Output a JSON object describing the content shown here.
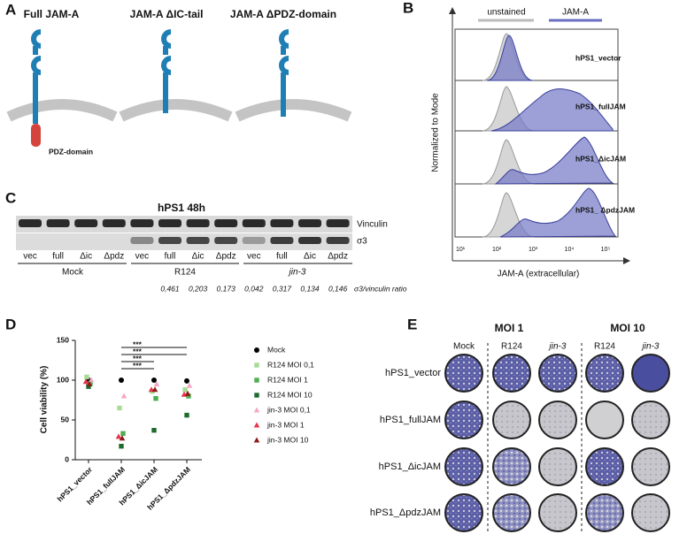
{
  "panel_a": {
    "letter": "A",
    "labels": [
      "Full JAM-A",
      "JAM-A ΔIC-tail",
      "JAM-A ΔPDZ-domain"
    ],
    "pdz_label": "PDZ-domain"
  },
  "panel_b": {
    "letter": "B",
    "legend": [
      "unstained",
      "JAM-A"
    ],
    "y_label": "Normalized to Mode",
    "x_label": "JAM-A (extracellular)",
    "rows": [
      "hPS1_vector",
      "hPS1_fullJAM",
      "hPS1_ΔicJAM",
      "hPS1_ ΔpdzJAM"
    ],
    "x_ticks": [
      "10¹",
      "10²",
      "10³",
      "10⁴",
      "10⁵"
    ]
  },
  "panel_c": {
    "letter": "C",
    "title": "hPS1 48h",
    "blots": [
      "Vinculin",
      "σ3"
    ],
    "lanes": [
      "vec",
      "full",
      "Δic",
      "Δpdz",
      "vec",
      "full",
      "Δic",
      "Δpdz",
      "vec",
      "full",
      "Δic",
      "Δpdz"
    ],
    "groups": [
      "Mock",
      "R124",
      "jin-3"
    ],
    "ratios": [
      "0,461",
      "0,203",
      "0,173",
      "0,042",
      "0,317",
      "0,134",
      "0,146"
    ],
    "ratio_label": "σ3/vinculin ratio"
  },
  "panel_d": {
    "letter": "D"
  },
  "chart_data": {
    "type": "scatter",
    "y_label": "Cell viability (%)",
    "categories": [
      "hPS1_vector",
      "hPS1_fullJAM",
      "hPS1_ΔicJAM",
      "hPS1_ΔpdzJAM"
    ],
    "ylim": [
      0,
      150
    ],
    "yticks": [
      0,
      50,
      100,
      150
    ],
    "annotations": [
      "***",
      "***",
      "***",
      "***"
    ],
    "series": [
      {
        "name": "Mock",
        "color": "#000000",
        "marker": "circle",
        "values": [
          100,
          100,
          100,
          99
        ]
      },
      {
        "name": "R124 MOI 0,1",
        "color": "#a6dc94",
        "marker": "square",
        "values": [
          104,
          65,
          86,
          88
        ]
      },
      {
        "name": "R124 MOI 1",
        "color": "#4caf50",
        "marker": "square",
        "values": [
          96,
          33,
          77,
          80
        ]
      },
      {
        "name": "R124 MOI 10",
        "color": "#1e6b2e",
        "marker": "square",
        "values": [
          92,
          17,
          37,
          56
        ]
      },
      {
        "name": "jin-3 MOI 0,1",
        "color": "#f4a7c7",
        "marker": "triangle",
        "values": [
          100,
          80,
          95,
          93
        ]
      },
      {
        "name": "jin-3 MOI 1",
        "color": "#e8344a",
        "marker": "triangle",
        "values": [
          98,
          29,
          88,
          82
        ]
      },
      {
        "name": "jin-3 MOI 10",
        "color": "#8b1a1a",
        "marker": "triangle",
        "values": [
          95,
          27,
          88,
          83
        ]
      }
    ]
  },
  "panel_e": {
    "letter": "E",
    "moi": [
      "MOI 1",
      "MOI 10"
    ],
    "columns": [
      "Mock",
      "R124",
      "jin-3",
      "R124",
      "jin-3"
    ],
    "rows": [
      "hPS1_vector",
      "hPS1_fullJAM",
      "hPS1_ΔicJAM",
      "hPS1_ΔpdzJAM"
    ]
  }
}
